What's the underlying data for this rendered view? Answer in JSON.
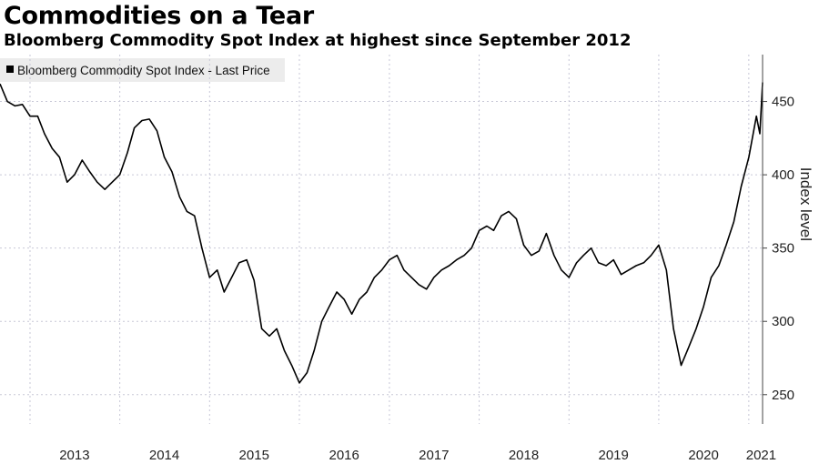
{
  "title": "Commodities on a Tear",
  "subtitle": "Bloomberg Commodity Spot Index at highest since September 2012",
  "chart_data": {
    "type": "line",
    "ylabel": "Index level",
    "xlabel": "",
    "ylim": [
      230,
      482
    ],
    "xlim": [
      "2012-09-01",
      "2021-02-26"
    ],
    "yticks": [
      250,
      300,
      350,
      400,
      450
    ],
    "xticks": [
      "2013",
      "2014",
      "2015",
      "2016",
      "2017",
      "2018",
      "2019",
      "2020",
      "2021"
    ],
    "grid": true,
    "legend_position": "top-left",
    "line_color": "#000000",
    "series": [
      {
        "name": "Bloomberg Commodity Spot Index - Last Price",
        "points": [
          [
            "2012-09-01",
            462
          ],
          [
            "2012-10-01",
            450
          ],
          [
            "2012-11-01",
            447
          ],
          [
            "2012-12-01",
            448
          ],
          [
            "2013-01-01",
            440
          ],
          [
            "2013-02-01",
            440
          ],
          [
            "2013-03-01",
            428
          ],
          [
            "2013-04-01",
            418
          ],
          [
            "2013-05-01",
            412
          ],
          [
            "2013-06-01",
            395
          ],
          [
            "2013-07-01",
            400
          ],
          [
            "2013-08-01",
            410
          ],
          [
            "2013-09-01",
            402
          ],
          [
            "2013-10-01",
            395
          ],
          [
            "2013-11-01",
            390
          ],
          [
            "2013-12-01",
            395
          ],
          [
            "2014-01-01",
            400
          ],
          [
            "2014-02-01",
            415
          ],
          [
            "2014-03-01",
            432
          ],
          [
            "2014-04-01",
            437
          ],
          [
            "2014-05-01",
            438
          ],
          [
            "2014-06-01",
            430
          ],
          [
            "2014-07-01",
            412
          ],
          [
            "2014-08-01",
            402
          ],
          [
            "2014-09-01",
            385
          ],
          [
            "2014-10-01",
            375
          ],
          [
            "2014-11-01",
            372
          ],
          [
            "2014-12-01",
            350
          ],
          [
            "2015-01-01",
            330
          ],
          [
            "2015-02-01",
            335
          ],
          [
            "2015-03-01",
            320
          ],
          [
            "2015-04-01",
            330
          ],
          [
            "2015-05-01",
            340
          ],
          [
            "2015-06-01",
            342
          ],
          [
            "2015-07-01",
            328
          ],
          [
            "2015-08-01",
            295
          ],
          [
            "2015-09-01",
            290
          ],
          [
            "2015-10-01",
            295
          ],
          [
            "2015-11-01",
            280
          ],
          [
            "2015-12-01",
            270
          ],
          [
            "2016-01-01",
            258
          ],
          [
            "2016-02-01",
            265
          ],
          [
            "2016-03-01",
            280
          ],
          [
            "2016-04-01",
            300
          ],
          [
            "2016-05-01",
            310
          ],
          [
            "2016-06-01",
            320
          ],
          [
            "2016-07-01",
            315
          ],
          [
            "2016-08-01",
            305
          ],
          [
            "2016-09-01",
            315
          ],
          [
            "2016-10-01",
            320
          ],
          [
            "2016-11-01",
            330
          ],
          [
            "2016-12-01",
            335
          ],
          [
            "2017-01-01",
            342
          ],
          [
            "2017-02-01",
            345
          ],
          [
            "2017-03-01",
            335
          ],
          [
            "2017-04-01",
            330
          ],
          [
            "2017-05-01",
            325
          ],
          [
            "2017-06-01",
            322
          ],
          [
            "2017-07-01",
            330
          ],
          [
            "2017-08-01",
            335
          ],
          [
            "2017-09-01",
            338
          ],
          [
            "2017-10-01",
            342
          ],
          [
            "2017-11-01",
            345
          ],
          [
            "2017-12-01",
            350
          ],
          [
            "2018-01-01",
            362
          ],
          [
            "2018-02-01",
            365
          ],
          [
            "2018-03-01",
            362
          ],
          [
            "2018-04-01",
            372
          ],
          [
            "2018-05-01",
            375
          ],
          [
            "2018-06-01",
            370
          ],
          [
            "2018-07-01",
            352
          ],
          [
            "2018-08-01",
            345
          ],
          [
            "2018-09-01",
            348
          ],
          [
            "2018-10-01",
            360
          ],
          [
            "2018-11-01",
            345
          ],
          [
            "2018-12-01",
            335
          ],
          [
            "2019-01-01",
            330
          ],
          [
            "2019-02-01",
            340
          ],
          [
            "2019-03-01",
            345
          ],
          [
            "2019-04-01",
            350
          ],
          [
            "2019-05-01",
            340
          ],
          [
            "2019-06-01",
            338
          ],
          [
            "2019-07-01",
            342
          ],
          [
            "2019-08-01",
            332
          ],
          [
            "2019-09-01",
            335
          ],
          [
            "2019-10-01",
            338
          ],
          [
            "2019-11-01",
            340
          ],
          [
            "2019-12-01",
            345
          ],
          [
            "2020-01-01",
            352
          ],
          [
            "2020-02-01",
            335
          ],
          [
            "2020-03-01",
            295
          ],
          [
            "2020-04-01",
            270
          ],
          [
            "2020-05-01",
            282
          ],
          [
            "2020-06-01",
            295
          ],
          [
            "2020-07-01",
            310
          ],
          [
            "2020-08-01",
            330
          ],
          [
            "2020-09-01",
            338
          ],
          [
            "2020-10-01",
            352
          ],
          [
            "2020-11-01",
            368
          ],
          [
            "2020-12-01",
            392
          ],
          [
            "2021-01-01",
            412
          ],
          [
            "2021-02-01",
            440
          ],
          [
            "2021-02-15",
            428
          ],
          [
            "2021-02-26",
            463
          ]
        ]
      }
    ]
  }
}
